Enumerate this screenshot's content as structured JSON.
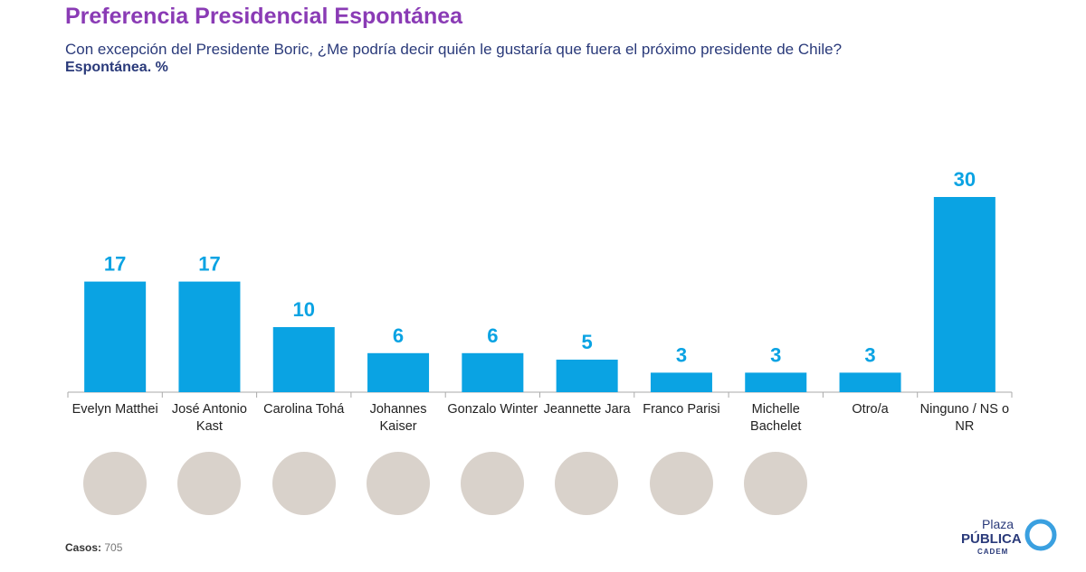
{
  "chart_data": {
    "type": "bar",
    "title": "Preferencia Presidencial Espontánea",
    "subtitle": "Con excepción del Presidente Boric, ¿Me podría decir quién le gustaría que fuera el próximo presidente de Chile?",
    "unit_note": "Espontánea. %",
    "categories": [
      "Evelyn Matthei",
      "José Antonio Kast",
      "Carolina Tohá",
      "Johannes Kaiser",
      "Gonzalo Winter",
      "Jeannette Jara",
      "Franco Parisi",
      "Michelle Bachelet",
      "Otro/a",
      "Ninguno / NS o NR"
    ],
    "values": [
      17,
      17,
      10,
      6,
      6,
      5,
      3,
      3,
      3,
      30
    ],
    "color": "#0aa3e3",
    "ylim": [
      0,
      30
    ],
    "footer": {
      "label": "Casos:",
      "value": "705"
    },
    "logo": {
      "line1": "Plaza",
      "line2": "PÚBLICA",
      "line3": "CADEM"
    }
  }
}
